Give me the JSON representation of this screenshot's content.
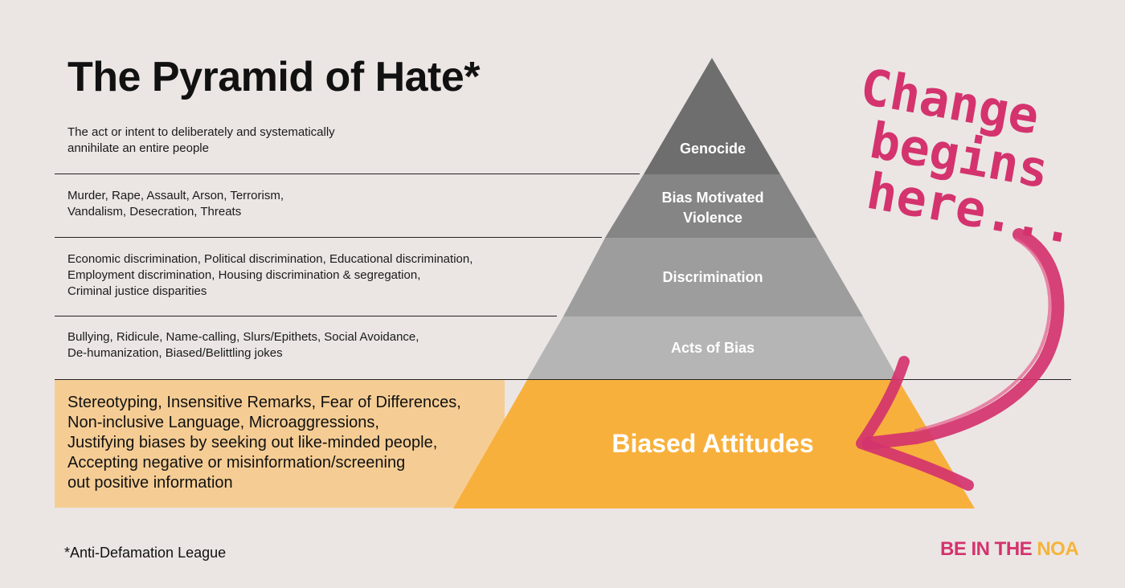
{
  "title": "The Pyramid of Hate*",
  "levels": [
    {
      "label": "Genocide",
      "description": [
        "The act or intent to deliberately and systematically",
        "annihilate an entire people"
      ],
      "color": "#6e6e6e"
    },
    {
      "label_lines": [
        "Bias Motivated",
        "Violence"
      ],
      "description": [
        "Murder, Rape, Assault, Arson, Terrorism,",
        "Vandalism, Desecration, Threats"
      ],
      "color": "#858585"
    },
    {
      "label": "Discrimination",
      "description": [
        "Economic discrimination, Political discrimination, Educational discrimination,",
        "Employment discrimination, Housing discrimination & segregation,",
        "Criminal justice disparities"
      ],
      "color": "#9d9d9d"
    },
    {
      "label": "Acts of Bias",
      "description": [
        "Bullying, Ridicule, Name-calling, Slurs/Epithets, Social Avoidance,",
        "De-humanization, Biased/Belittling jokes"
      ],
      "color": "#b5b5b5"
    },
    {
      "label": "Biased Attitudes",
      "description": [
        "Stereotyping, Insensitive Remarks, Fear of Differences,",
        "Non-inclusive Language, Microaggressions,",
        "Justifying biases by seeking out like-minded people,",
        "Accepting negative or misinformation/screening",
        "out positive information"
      ],
      "color": "#f8b03c"
    }
  ],
  "handwritten_note": [
    "Change",
    "begins",
    "here..."
  ],
  "footnote": "*Anti-Defamation League",
  "logo": {
    "part1": "BE IN THE ",
    "part2": "NOA"
  },
  "colors": {
    "background": "#ebe6e4",
    "accent_pink": "#d4336e",
    "base_band": "#f5cd94",
    "base_tier": "#f8b03c"
  }
}
